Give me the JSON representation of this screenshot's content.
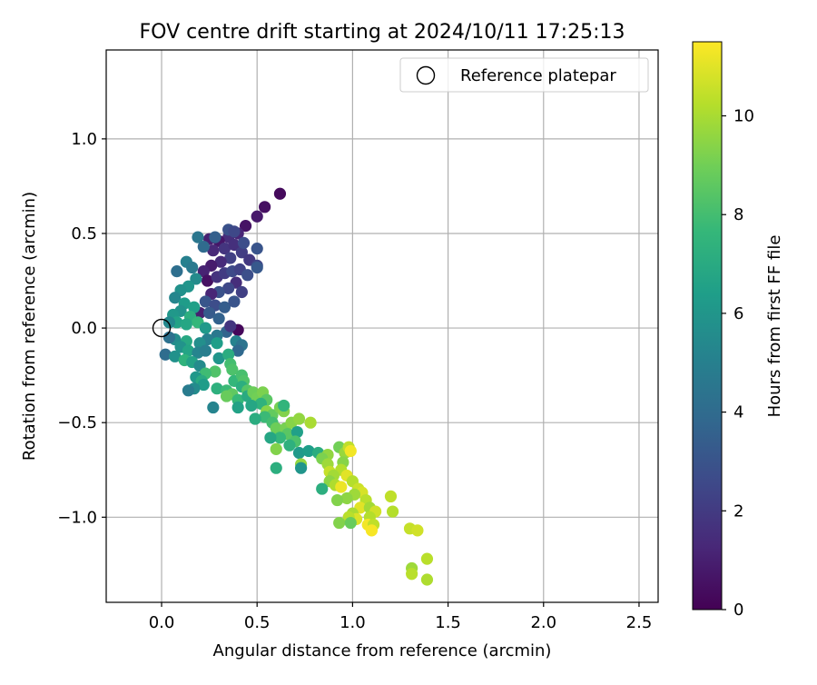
{
  "chart_data": {
    "type": "scatter",
    "title": "FOV centre drift starting at 2024/10/11 17:25:13",
    "xlabel": "Angular distance from reference (arcmin)",
    "ylabel": "Rotation from reference (arcmin)",
    "xlim": [
      -0.29,
      2.6
    ],
    "ylim": [
      -1.45,
      1.47
    ],
    "xticks": [
      0.0,
      0.5,
      1.0,
      1.5,
      2.0,
      2.5
    ],
    "xtick_labels": [
      "0.0",
      "0.5",
      "1.0",
      "1.5",
      "2.0",
      "2.5"
    ],
    "yticks": [
      -1.0,
      -0.5,
      0.0,
      0.5,
      1.0
    ],
    "ytick_labels": [
      "−1.0",
      "−0.5",
      "0.0",
      "0.5",
      "1.0"
    ],
    "grid": true,
    "legend": {
      "position": "top-right",
      "entries": [
        "Reference platepar"
      ]
    },
    "reference_point": {
      "x": 0.0,
      "y": 0.0,
      "marker": "hollow-circle"
    },
    "colorbar": {
      "label": "Hours from first FF file",
      "colormap": "viridis",
      "range": [
        0,
        11.5
      ],
      "ticks": [
        0,
        2,
        4,
        6,
        8,
        10
      ],
      "tick_labels": [
        "0",
        "2",
        "4",
        "6",
        "8",
        "10"
      ]
    },
    "colormap_stops": [
      "#440154",
      "#482878",
      "#3e4989",
      "#31688e",
      "#26828e",
      "#1f9e89",
      "#35b779",
      "#6ece58",
      "#b5de2b",
      "#fde725"
    ],
    "series": [
      {
        "points": [
          [
            0.62,
            0.71,
            0.3
          ],
          [
            0.54,
            0.64,
            0.5
          ],
          [
            0.5,
            0.59,
            0.8
          ],
          [
            0.44,
            0.54,
            0.6
          ],
          [
            0.4,
            0.5,
            1.2
          ],
          [
            0.35,
            0.48,
            1.5
          ],
          [
            0.3,
            0.46,
            0.7
          ],
          [
            0.25,
            0.47,
            1.0
          ],
          [
            0.27,
            0.41,
            1.3
          ],
          [
            0.33,
            0.42,
            1.8
          ],
          [
            0.38,
            0.44,
            1.6
          ],
          [
            0.42,
            0.4,
            2.1
          ],
          [
            0.46,
            0.36,
            1.9
          ],
          [
            0.5,
            0.33,
            2.4
          ],
          [
            0.36,
            0.37,
            2.2
          ],
          [
            0.31,
            0.35,
            1.4
          ],
          [
            0.26,
            0.33,
            0.9
          ],
          [
            0.22,
            0.3,
            1.1
          ],
          [
            0.24,
            0.25,
            0.5
          ],
          [
            0.29,
            0.27,
            1.7
          ],
          [
            0.33,
            0.29,
            2.0
          ],
          [
            0.37,
            0.3,
            2.6
          ],
          [
            0.41,
            0.31,
            2.3
          ],
          [
            0.45,
            0.28,
            2.8
          ],
          [
            0.39,
            0.24,
            1.5
          ],
          [
            0.35,
            0.21,
            2.5
          ],
          [
            0.3,
            0.19,
            2.9
          ],
          [
            0.26,
            0.18,
            1.2
          ],
          [
            0.23,
            0.14,
            3.1
          ],
          [
            0.28,
            0.12,
            2.7
          ],
          [
            0.33,
            0.11,
            3.4
          ],
          [
            0.38,
            0.14,
            3.0
          ],
          [
            0.42,
            0.19,
            2.2
          ],
          [
            0.2,
            0.08,
            1.0
          ],
          [
            0.25,
            0.08,
            3.3
          ],
          [
            0.3,
            0.05,
            3.6
          ],
          [
            0.35,
            0.52,
            2.9
          ],
          [
            0.38,
            0.51,
            2.5
          ],
          [
            0.43,
            0.45,
            2.7
          ],
          [
            0.5,
            0.42,
            3.0
          ],
          [
            0.5,
            0.32,
            3.2
          ],
          [
            0.28,
            0.48,
            3.5
          ],
          [
            0.22,
            0.43,
            4.0
          ],
          [
            0.19,
            0.48,
            4.5
          ],
          [
            0.13,
            0.35,
            5.0
          ],
          [
            0.16,
            0.32,
            4.7
          ],
          [
            0.08,
            0.3,
            4.2
          ],
          [
            0.18,
            0.26,
            5.5
          ],
          [
            0.14,
            0.22,
            6.0
          ],
          [
            0.1,
            0.2,
            5.8
          ],
          [
            0.07,
            0.16,
            5.3
          ],
          [
            0.12,
            0.13,
            6.3
          ],
          [
            0.17,
            0.11,
            6.5
          ],
          [
            0.1,
            0.09,
            5.9
          ],
          [
            0.06,
            0.07,
            6.1
          ],
          [
            0.15,
            0.06,
            7.2
          ],
          [
            0.08,
            0.03,
            6.6
          ],
          [
            0.13,
            0.02,
            6.8
          ],
          [
            0.04,
            0.03,
            5.4
          ],
          [
            0.19,
            0.03,
            7.6
          ],
          [
            0.23,
            0.0,
            6.2
          ],
          [
            0.4,
            -0.01,
            0.2
          ],
          [
            0.34,
            -0.02,
            3.7
          ],
          [
            0.36,
            0.01,
            1.8
          ],
          [
            0.29,
            -0.04,
            4.6
          ],
          [
            0.24,
            -0.06,
            5.0
          ],
          [
            0.2,
            -0.08,
            5.7
          ],
          [
            0.13,
            -0.07,
            6.9
          ],
          [
            0.07,
            -0.06,
            5.6
          ],
          [
            0.04,
            -0.05,
            4.3
          ],
          [
            0.1,
            -0.1,
            5.9
          ],
          [
            0.14,
            -0.12,
            6.7
          ],
          [
            0.19,
            -0.13,
            5.2
          ],
          [
            0.23,
            -0.12,
            4.9
          ],
          [
            0.29,
            -0.08,
            6.4
          ],
          [
            0.39,
            -0.07,
            5.1
          ],
          [
            0.42,
            -0.09,
            4.4
          ],
          [
            0.4,
            -0.12,
            3.9
          ],
          [
            0.02,
            -0.14,
            4.1
          ],
          [
            0.07,
            -0.15,
            5.8
          ],
          [
            0.12,
            -0.17,
            7.4
          ],
          [
            0.16,
            -0.18,
            6.6
          ],
          [
            0.2,
            -0.2,
            5.5
          ],
          [
            0.3,
            -0.16,
            6.0
          ],
          [
            0.35,
            -0.14,
            7.1
          ],
          [
            0.36,
            -0.19,
            8.0
          ],
          [
            0.37,
            -0.22,
            8.2
          ],
          [
            0.28,
            -0.23,
            8.3
          ],
          [
            0.23,
            -0.24,
            7.9
          ],
          [
            0.18,
            -0.26,
            6.1
          ],
          [
            0.21,
            -0.28,
            7.0
          ],
          [
            0.22,
            -0.3,
            6.3
          ],
          [
            0.17,
            -0.32,
            5.5
          ],
          [
            0.14,
            -0.33,
            4.8
          ],
          [
            0.29,
            -0.32,
            7.3
          ],
          [
            0.34,
            -0.33,
            7.8
          ],
          [
            0.38,
            -0.28,
            7.6
          ],
          [
            0.42,
            -0.25,
            8.1
          ],
          [
            0.43,
            -0.28,
            8.3
          ],
          [
            0.42,
            -0.31,
            7.2
          ],
          [
            0.45,
            -0.33,
            8.4
          ],
          [
            0.37,
            -0.35,
            8.6
          ],
          [
            0.34,
            -0.36,
            8.8
          ],
          [
            0.4,
            -0.38,
            7.7
          ],
          [
            0.45,
            -0.36,
            7.0
          ],
          [
            0.48,
            -0.34,
            8.9
          ],
          [
            0.5,
            -0.37,
            9.0
          ],
          [
            0.53,
            -0.34,
            9.2
          ],
          [
            0.55,
            -0.38,
            8.5
          ],
          [
            0.52,
            -0.4,
            7.4
          ],
          [
            0.47,
            -0.41,
            6.8
          ],
          [
            0.4,
            -0.42,
            6.6
          ],
          [
            0.27,
            -0.42,
            5.2
          ],
          [
            0.55,
            -0.44,
            9.4
          ],
          [
            0.58,
            -0.46,
            8.7
          ],
          [
            0.62,
            -0.42,
            9.1
          ],
          [
            0.64,
            -0.44,
            9.3
          ],
          [
            0.64,
            -0.41,
            7.5
          ],
          [
            0.54,
            -0.47,
            7.8
          ],
          [
            0.49,
            -0.48,
            7.1
          ],
          [
            0.58,
            -0.5,
            8.0
          ],
          [
            0.6,
            -0.53,
            8.9
          ],
          [
            0.65,
            -0.53,
            9.1
          ],
          [
            0.68,
            -0.5,
            9.4
          ],
          [
            0.72,
            -0.48,
            9.6
          ],
          [
            0.78,
            -0.5,
            10.0
          ],
          [
            0.66,
            -0.56,
            8.5
          ],
          [
            0.62,
            -0.58,
            7.6
          ],
          [
            0.57,
            -0.58,
            6.8
          ],
          [
            0.71,
            -0.55,
            6.5
          ],
          [
            0.7,
            -0.6,
            8.2
          ],
          [
            0.67,
            -0.62,
            7.3
          ],
          [
            0.72,
            -0.66,
            6.2
          ],
          [
            0.6,
            -0.64,
            9.3
          ],
          [
            0.77,
            -0.65,
            6.4
          ],
          [
            0.82,
            -0.66,
            7.1
          ],
          [
            0.87,
            -0.67,
            9.6
          ],
          [
            0.84,
            -0.69,
            9.2
          ],
          [
            0.93,
            -0.63,
            9.0
          ],
          [
            0.96,
            -0.66,
            9.7
          ],
          [
            0.98,
            -0.63,
            10.4
          ],
          [
            0.99,
            -0.65,
            11.3
          ],
          [
            0.6,
            -0.74,
            7.2
          ],
          [
            0.73,
            -0.72,
            9.6
          ],
          [
            0.73,
            -0.74,
            6.0
          ],
          [
            0.87,
            -0.72,
            9.8
          ],
          [
            0.95,
            -0.71,
            9.4
          ],
          [
            0.94,
            -0.75,
            10.2
          ],
          [
            0.88,
            -0.76,
            10.5
          ],
          [
            0.9,
            -0.78,
            9.9
          ],
          [
            0.97,
            -0.78,
            11.0
          ],
          [
            0.88,
            -0.81,
            9.5
          ],
          [
            0.84,
            -0.85,
            7.2
          ],
          [
            0.91,
            -0.83,
            10.1
          ],
          [
            0.94,
            -0.84,
            11.2
          ],
          [
            1.0,
            -0.81,
            10.2
          ],
          [
            1.03,
            -0.85,
            10.6
          ],
          [
            1.05,
            -0.87,
            10.8
          ],
          [
            1.01,
            -0.88,
            9.8
          ],
          [
            0.97,
            -0.9,
            9.5
          ],
          [
            0.92,
            -0.91,
            9.3
          ],
          [
            1.07,
            -0.91,
            10.3
          ],
          [
            1.04,
            -0.95,
            11.0
          ],
          [
            1.09,
            -0.95,
            9.9
          ],
          [
            1.12,
            -0.97,
            10.7
          ],
          [
            1.2,
            -0.89,
            10.4
          ],
          [
            1.21,
            -0.97,
            10.2
          ],
          [
            1.0,
            -0.98,
            10.0
          ],
          [
            1.02,
            -1.01,
            10.9
          ],
          [
            1.09,
            -1.0,
            10.2
          ],
          [
            0.98,
            -1.0,
            10.3
          ],
          [
            0.93,
            -1.03,
            9.3
          ],
          [
            0.99,
            -1.03,
            8.8
          ],
          [
            1.08,
            -1.04,
            11.3
          ],
          [
            1.11,
            -1.04,
            10.4
          ],
          [
            1.1,
            -1.07,
            11.4
          ],
          [
            1.3,
            -1.06,
            10.5
          ],
          [
            1.34,
            -1.07,
            10.7
          ],
          [
            1.39,
            -1.22,
            10.3
          ],
          [
            1.31,
            -1.27,
            9.8
          ],
          [
            1.31,
            -1.3,
            10.3
          ],
          [
            1.39,
            -1.33,
            10.1
          ]
        ]
      }
    ]
  }
}
